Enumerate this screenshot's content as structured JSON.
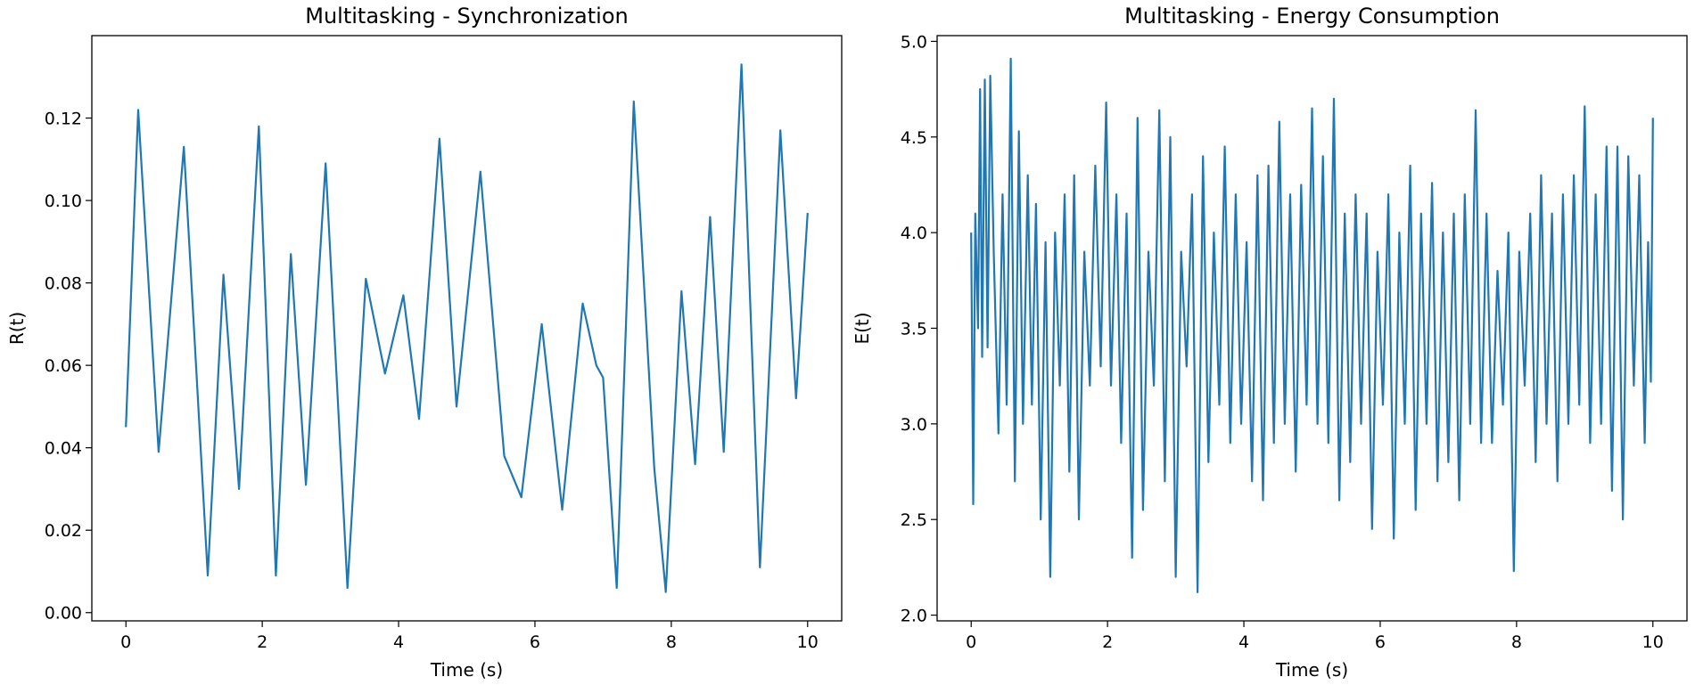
{
  "chart_data": [
    {
      "type": "line",
      "title": "Multitasking - Synchronization",
      "xlabel": "Time (s)",
      "ylabel": "R(t)",
      "xlim": [
        -0.5,
        10.5
      ],
      "ylim": [
        -0.002,
        0.14
      ],
      "xticks": [
        0,
        2,
        4,
        6,
        8,
        10
      ],
      "xtick_labels": [
        "0",
        "2",
        "4",
        "6",
        "8",
        "10"
      ],
      "yticks": [
        0.0,
        0.02,
        0.04,
        0.06,
        0.08,
        0.1,
        0.12
      ],
      "ytick_labels": [
        "0.00",
        "0.02",
        "0.04",
        "0.06",
        "0.08",
        "0.10",
        "0.12"
      ],
      "grid": false,
      "color": "#1f77b4",
      "series": [
        {
          "x": [
            0.0,
            0.18,
            0.48,
            0.85,
            1.2,
            1.43,
            1.66,
            1.95,
            2.2,
            2.42,
            2.64,
            2.93,
            3.25,
            3.52,
            3.8,
            4.07,
            4.3,
            4.6,
            4.85,
            5.2,
            5.55,
            5.8,
            6.1,
            6.4,
            6.7,
            6.9,
            7.0,
            7.2,
            7.45,
            7.75,
            7.92,
            8.15,
            8.35,
            8.57,
            8.77,
            9.03,
            9.3,
            9.6,
            9.83,
            10.0
          ],
          "y": [
            0.045,
            0.122,
            0.039,
            0.113,
            0.009,
            0.082,
            0.03,
            0.118,
            0.009,
            0.087,
            0.031,
            0.109,
            0.006,
            0.081,
            0.058,
            0.077,
            0.047,
            0.115,
            0.05,
            0.107,
            0.038,
            0.028,
            0.07,
            0.025,
            0.075,
            0.06,
            0.057,
            0.006,
            0.124,
            0.035,
            0.005,
            0.078,
            0.036,
            0.096,
            0.039,
            0.133,
            0.011,
            0.117,
            0.052,
            0.097
          ]
        }
      ]
    },
    {
      "type": "line",
      "title": "Multitasking - Energy Consumption",
      "xlabel": "Time (s)",
      "ylabel": "E(t)",
      "xlim": [
        -0.5,
        10.5
      ],
      "ylim": [
        1.97,
        5.03
      ],
      "xticks": [
        0,
        2,
        4,
        6,
        8,
        10
      ],
      "xtick_labels": [
        "0",
        "2",
        "4",
        "6",
        "8",
        "10"
      ],
      "yticks": [
        2.0,
        2.5,
        3.0,
        3.5,
        4.0,
        4.5,
        5.0
      ],
      "ytick_labels": [
        "2.0",
        "2.5",
        "3.0",
        "3.5",
        "4.0",
        "4.5",
        "5.0"
      ],
      "grid": false,
      "color": "#1f77b4",
      "series": [
        {
          "x": [
            0.0,
            0.03,
            0.06,
            0.1,
            0.13,
            0.16,
            0.2,
            0.24,
            0.28,
            0.33,
            0.4,
            0.46,
            0.52,
            0.58,
            0.64,
            0.7,
            0.76,
            0.83,
            0.89,
            0.95,
            1.02,
            1.09,
            1.16,
            1.23,
            1.3,
            1.37,
            1.44,
            1.51,
            1.58,
            1.66,
            1.74,
            1.82,
            1.9,
            1.98,
            2.05,
            2.13,
            2.2,
            2.28,
            2.36,
            2.44,
            2.52,
            2.6,
            2.68,
            2.76,
            2.84,
            2.92,
            3.0,
            3.08,
            3.16,
            3.24,
            3.32,
            3.4,
            3.48,
            3.56,
            3.64,
            3.72,
            3.8,
            3.88,
            3.96,
            4.04,
            4.12,
            4.2,
            4.28,
            4.36,
            4.44,
            4.52,
            4.6,
            4.68,
            4.76,
            4.84,
            4.92,
            5.0,
            5.08,
            5.16,
            5.24,
            5.32,
            5.4,
            5.48,
            5.56,
            5.64,
            5.72,
            5.8,
            5.88,
            5.96,
            6.04,
            6.12,
            6.2,
            6.28,
            6.36,
            6.44,
            6.52,
            6.6,
            6.68,
            6.76,
            6.84,
            6.92,
            7.0,
            7.08,
            7.16,
            7.24,
            7.32,
            7.4,
            7.48,
            7.56,
            7.64,
            7.72,
            7.8,
            7.88,
            7.96,
            8.04,
            8.12,
            8.2,
            8.28,
            8.36,
            8.44,
            8.52,
            8.6,
            8.68,
            8.76,
            8.84,
            8.92,
            9.0,
            9.08,
            9.16,
            9.24,
            9.32,
            9.4,
            9.48,
            9.56,
            9.64,
            9.72,
            9.8,
            9.88,
            9.93,
            9.97,
            10.0
          ],
          "y": [
            4.0,
            2.58,
            4.1,
            3.5,
            4.75,
            3.35,
            4.8,
            3.4,
            4.82,
            3.9,
            2.95,
            4.2,
            3.1,
            4.91,
            2.7,
            4.53,
            3.0,
            4.3,
            3.1,
            4.15,
            2.5,
            3.95,
            2.2,
            4.0,
            3.2,
            4.2,
            2.75,
            4.3,
            2.5,
            3.9,
            3.2,
            4.35,
            3.3,
            4.68,
            3.2,
            4.2,
            2.9,
            4.1,
            2.3,
            4.6,
            2.55,
            3.9,
            3.2,
            4.64,
            2.7,
            4.5,
            2.2,
            3.9,
            3.3,
            4.2,
            2.12,
            4.4,
            2.8,
            4.0,
            3.1,
            4.45,
            2.9,
            4.2,
            3.0,
            3.95,
            2.7,
            4.3,
            2.6,
            4.35,
            2.9,
            4.58,
            3.0,
            4.2,
            2.75,
            4.25,
            3.1,
            4.65,
            3.0,
            4.4,
            2.9,
            4.7,
            2.6,
            4.1,
            2.8,
            4.2,
            3.0,
            4.1,
            2.45,
            3.9,
            3.1,
            4.2,
            2.4,
            4.0,
            3.0,
            4.35,
            2.55,
            4.1,
            3.0,
            4.26,
            2.7,
            4.0,
            2.8,
            4.1,
            2.6,
            4.2,
            3.0,
            4.64,
            2.9,
            4.1,
            2.9,
            3.8,
            3.1,
            4.0,
            2.23,
            3.9,
            3.2,
            4.1,
            2.8,
            4.3,
            3.0,
            4.1,
            2.7,
            4.2,
            3.0,
            4.3,
            3.1,
            4.66,
            2.9,
            4.2,
            3.0,
            4.45,
            2.65,
            4.45,
            2.5,
            4.4,
            3.2,
            4.3,
            2.9,
            3.95,
            3.22,
            4.6
          ]
        }
      ]
    }
  ]
}
